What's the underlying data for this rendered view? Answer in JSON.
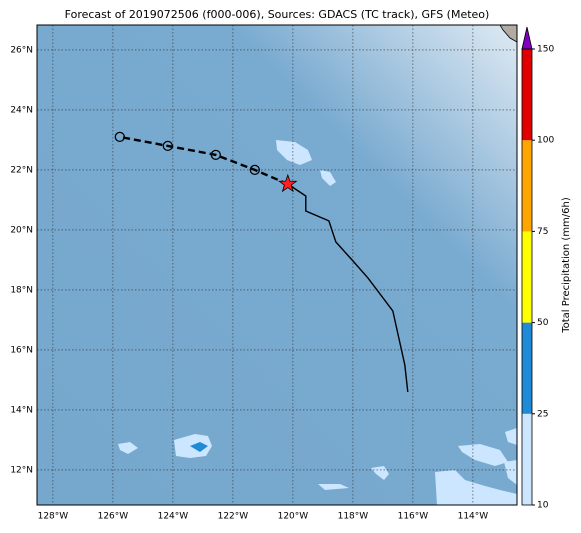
{
  "title": "Forecast of 2019072506 (f000-006), Sources: GDACS (TC track), GFS (Meteo)",
  "map": {
    "lon_range": [
      -128.53,
      -112.53
    ],
    "lat_range": [
      10.83,
      26.83
    ],
    "lon_lines": [
      {
        "value": -128,
        "label": "128°W"
      },
      {
        "value": -126,
        "label": "126°W"
      },
      {
        "value": -124,
        "label": "124°W"
      },
      {
        "value": -122,
        "label": "122°W"
      },
      {
        "value": -120,
        "label": "120°W"
      },
      {
        "value": -118,
        "label": "118°W"
      },
      {
        "value": -116,
        "label": "116°W"
      },
      {
        "value": -114,
        "label": "114°W"
      }
    ],
    "lat_lines": [
      {
        "value": 12,
        "label": "12°N"
      },
      {
        "value": 14,
        "label": "14°N"
      },
      {
        "value": 16,
        "label": "16°N"
      },
      {
        "value": 18,
        "label": "18°N"
      },
      {
        "value": 20,
        "label": "20°N"
      },
      {
        "value": 22,
        "label": "22°N"
      },
      {
        "value": 24,
        "label": "24°N"
      },
      {
        "value": 26,
        "label": "26°N"
      }
    ]
  },
  "track": {
    "past": {
      "lon": [
        -116.17,
        -116.27,
        -116.67,
        -117.1,
        -117.5,
        -118.03,
        -118.57,
        -118.8,
        -119.57,
        -119.57,
        -120.17
      ],
      "lat": [
        14.6,
        15.5,
        17.3,
        17.87,
        18.4,
        19.0,
        19.6,
        20.3,
        20.63,
        21.13,
        21.53
      ]
    },
    "forecast": {
      "lon": [
        -120.17,
        -121.27,
        -122.57,
        -124.17,
        -125.77
      ],
      "lat": [
        21.53,
        22.0,
        22.5,
        22.8,
        23.1
      ]
    }
  },
  "colorbar": {
    "label": "Total Precipitation (mm/6h)",
    "levels": [
      10,
      25,
      50,
      75,
      100,
      150
    ],
    "colors": [
      "#cce6ff",
      "#1f8ad6",
      "#ffff00",
      "#ffa500",
      "#e00000"
    ],
    "over_color": "#8000c0"
  }
}
